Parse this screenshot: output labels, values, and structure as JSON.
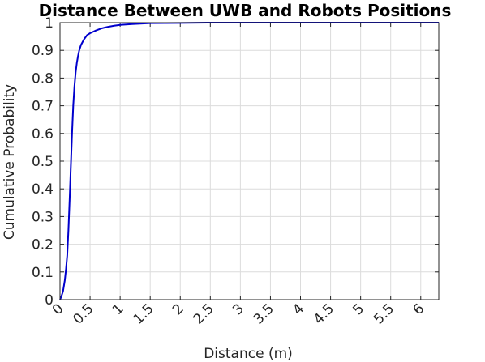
{
  "chart_data": {
    "type": "line",
    "title": "Distance Between UWB and Robots Positions",
    "xlabel": "Distance (m)",
    "ylabel": "Cumulative Probability",
    "xlim": [
      0,
      6.3
    ],
    "ylim": [
      0,
      1
    ],
    "x_ticks": [
      0,
      0.5,
      1,
      1.5,
      2,
      2.5,
      3,
      3.5,
      4,
      4.5,
      5,
      5.5,
      6
    ],
    "x_tick_labels": [
      "0",
      "0.5",
      "1",
      "1.5",
      "2",
      "2.5",
      "3",
      "3.5",
      "4",
      "4.5",
      "5",
      "5.5",
      "6"
    ],
    "y_ticks": [
      0,
      0.1,
      0.2,
      0.3,
      0.4,
      0.5,
      0.6,
      0.7,
      0.8,
      0.9,
      1
    ],
    "y_tick_labels": [
      "0",
      "0.1",
      "0.2",
      "0.3",
      "0.4",
      "0.5",
      "0.6",
      "0.7",
      "0.8",
      "0.9",
      "1"
    ],
    "grid": true,
    "series": [
      {
        "color": "#0000cc",
        "x": [
          0,
          0.02,
          0.05,
          0.08,
          0.1,
          0.12,
          0.14,
          0.16,
          0.18,
          0.2,
          0.22,
          0.24,
          0.26,
          0.28,
          0.3,
          0.32,
          0.35,
          0.4,
          0.45,
          0.5,
          0.6,
          0.7,
          0.8,
          0.9,
          1.0,
          1.2,
          1.5,
          2.0,
          2.5,
          6.3
        ],
        "y": [
          0,
          0.01,
          0.03,
          0.07,
          0.11,
          0.16,
          0.25,
          0.36,
          0.48,
          0.6,
          0.7,
          0.77,
          0.82,
          0.855,
          0.88,
          0.9,
          0.92,
          0.94,
          0.955,
          0.962,
          0.972,
          0.98,
          0.985,
          0.989,
          0.992,
          0.995,
          0.998,
          0.999,
          1.0,
          1.0
        ]
      }
    ]
  }
}
